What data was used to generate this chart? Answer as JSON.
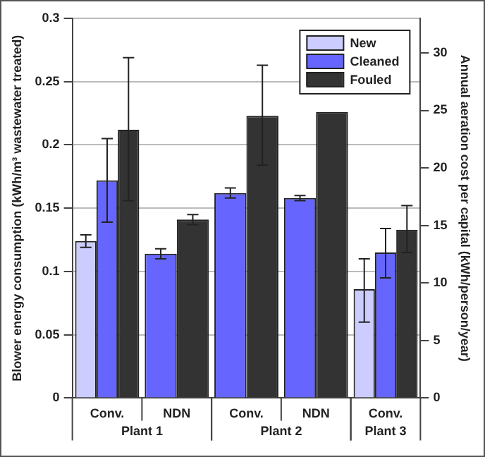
{
  "chart_data": {
    "type": "bar",
    "ylabel": "Blower energy consumption (kWh/m³ wastewater treated)",
    "y2label": "Annual aeration cost per capital (kWh/person/year)",
    "categories": [
      "Conv.",
      "NDN",
      "Conv.",
      "NDN",
      "Conv."
    ],
    "annotations": [
      "Plant 1",
      "Plant 2",
      "Plant 3"
    ],
    "series": [
      {
        "name": "New",
        "color": "#ccccff",
        "values": [
          0.124,
          null,
          null,
          null,
          0.086
        ],
        "errors": [
          0.005,
          null,
          null,
          null,
          [
            0.06,
            0.11
          ]
        ]
      },
      {
        "name": "Cleaned",
        "color": "#6666ff",
        "values": [
          0.172,
          0.114,
          0.162,
          0.158,
          0.115
        ],
        "errors": [
          [
            0.139,
            0.205
          ],
          0.004,
          0.004,
          0.002,
          [
            0.095,
            0.134
          ]
        ]
      },
      {
        "name": "Fouled",
        "color": "#333333",
        "values": [
          0.212,
          0.141,
          0.223,
          0.226,
          0.133
        ],
        "errors": [
          [
            0.156,
            0.269
          ],
          0.004,
          [
            0.184,
            0.263
          ],
          null,
          [
            0.115,
            0.152
          ]
        ]
      }
    ],
    "ylim": [
      0,
      0.3
    ],
    "yticks": [
      0,
      0.05,
      0.1,
      0.15,
      0.2,
      0.25,
      0.3
    ],
    "y2lim": [
      0,
      33
    ],
    "y2ticks": [
      0,
      5,
      10,
      15,
      20,
      25,
      30
    ],
    "grid": "y",
    "legend": "top right"
  }
}
